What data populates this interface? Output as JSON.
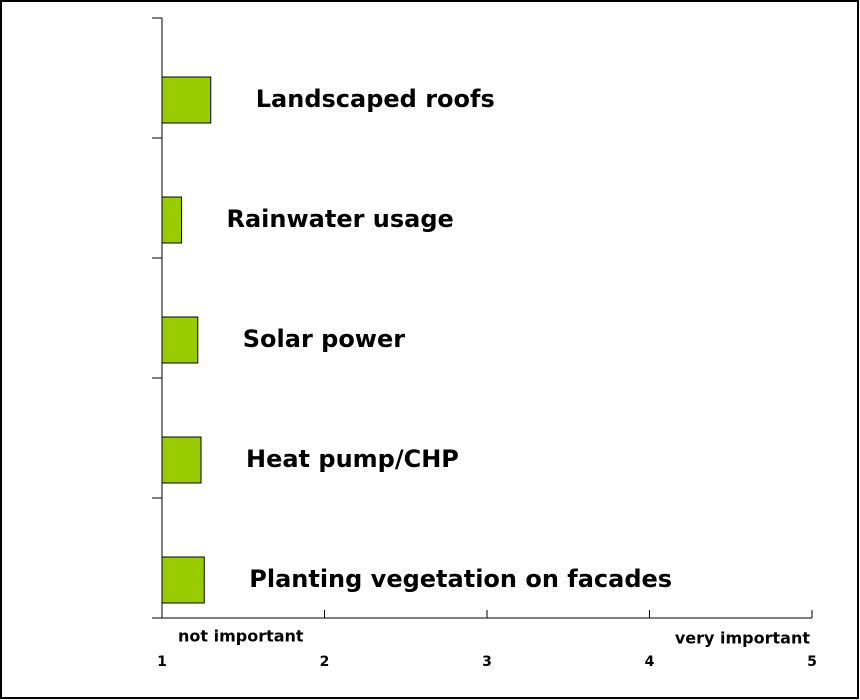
{
  "chart_data": {
    "type": "hbar",
    "categories": [
      "Landscaped roofs",
      "Rainwater usage",
      "Solar power",
      "Heat pump/CHP",
      "Planting vegetation on facades"
    ],
    "values": [
      1.3,
      1.12,
      1.22,
      1.24,
      1.26
    ],
    "color": "#99cc00",
    "xlim": [
      1,
      5
    ],
    "xticks": [
      1,
      2,
      3,
      4,
      5
    ],
    "annotations": [
      "not important",
      "very important"
    ]
  }
}
